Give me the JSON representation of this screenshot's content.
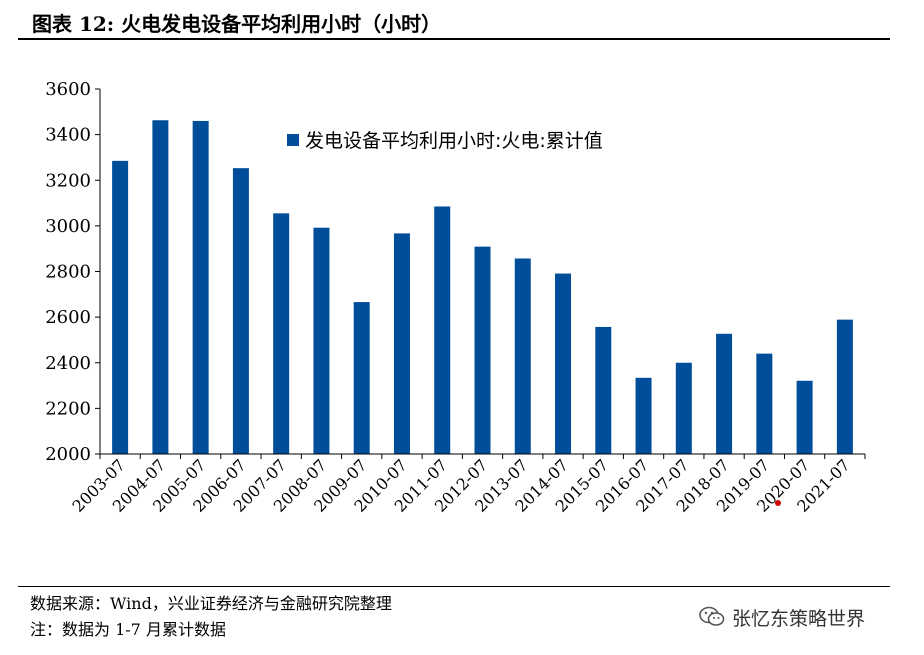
{
  "title": "图表 12: 火电发电设备平均利用小时（小时）",
  "source": "数据来源：Wind，兴业证券经济与金融研究院整理",
  "note": "注：数据为 1-7 月累计数据",
  "watermark": "张忆东策略世界",
  "colors": {
    "bar": "#004E9A",
    "text": "#000000"
  },
  "chart_data": {
    "type": "bar",
    "categories": [
      "2003-07",
      "2004-07",
      "2005-07",
      "2006-07",
      "2007-07",
      "2008-07",
      "2009-07",
      "2010-07",
      "2011-07",
      "2012-07",
      "2013-07",
      "2014-07",
      "2015-07",
      "2016-07",
      "2017-07",
      "2018-07",
      "2019-07",
      "2020-07",
      "2021-07"
    ],
    "series": [
      {
        "name": "发电设备平均利用小时:火电:累计值",
        "values": [
          3285,
          3463,
          3460,
          3253,
          3055,
          2992,
          2666,
          2967,
          3085,
          2909,
          2857,
          2791,
          2557,
          2334,
          2400,
          2527,
          2440,
          2321,
          2589
        ]
      }
    ],
    "yticks": [
      2000,
      2200,
      2400,
      2600,
      2800,
      3000,
      3200,
      3400,
      3600
    ],
    "ylim": [
      2000,
      3600
    ],
    "legend_position": "top-center",
    "grid": false
  }
}
